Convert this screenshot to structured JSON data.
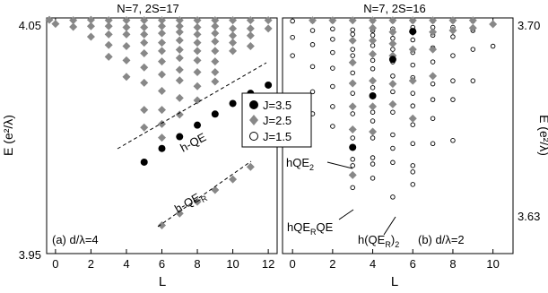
{
  "chart_data": [
    {
      "type": "scatter",
      "title": "N=7, 2S=17",
      "xlabel": "L",
      "ylabel": "E (e²/λ)",
      "xlim": [
        -0.5,
        12.5
      ],
      "ylim": [
        3.95,
        4.05
      ],
      "xticks": [
        0,
        2,
        4,
        6,
        8,
        10,
        12
      ],
      "xtick_labels": [
        "0",
        "2",
        "4",
        "6",
        "8",
        "10",
        "12"
      ],
      "ytick_labels": [
        "4.05",
        "3.95"
      ],
      "panel_label": "(a) d/λ=4",
      "legend": {
        "position": "right",
        "entries": [
          "J=3.5",
          "J=2.5",
          "J=1.5"
        ]
      },
      "series": [
        {
          "name": "J=3.5",
          "marker": "filled-circle",
          "color": "#000000",
          "points": [
            [
              5,
              3.9888
            ],
            [
              6,
              3.9946
            ],
            [
              7,
              3.9996
            ],
            [
              8,
              4.0045
            ],
            [
              9,
              4.0092
            ],
            [
              10,
              4.0137
            ],
            [
              11,
              4.018
            ],
            [
              12,
              4.0215
            ]
          ]
        },
        {
          "name": "J=2.5",
          "marker": "diamond",
          "color": "#888888",
          "points": [
            [
              -1,
              4.0492
            ],
            [
              0,
              4.0475
            ],
            [
              1,
              4.049
            ],
            [
              1,
              4.0462
            ],
            [
              2,
              4.0492
            ],
            [
              2,
              4.0465
            ],
            [
              2,
              4.042
            ],
            [
              3,
              4.049
            ],
            [
              3,
              4.0465
            ],
            [
              3,
              4.043
            ],
            [
              3,
              4.0385
            ],
            [
              3,
              4.0335
            ],
            [
              4,
              4.049
            ],
            [
              4,
              4.046
            ],
            [
              4,
              4.043
            ],
            [
              4,
              4.038
            ],
            [
              4,
              4.032
            ],
            [
              4,
              4.025
            ],
            [
              5,
              4.049
            ],
            [
              5,
              4.046
            ],
            [
              5,
              4.043
            ],
            [
              5,
              4.0395
            ],
            [
              5,
              4.035
            ],
            [
              5,
              4.029
            ],
            [
              5,
              4.0225
            ],
            [
              5,
              4.011
            ],
            [
              5,
              4.0035
            ],
            [
              6,
              4.049
            ],
            [
              6,
              4.0465
            ],
            [
              6,
              4.0435
            ],
            [
              6,
              4.0395
            ],
            [
              6,
              4.036
            ],
            [
              6,
              4.0315
            ],
            [
              6,
              4.026
            ],
            [
              6,
              4.019
            ],
            [
              6,
              4.011
            ],
            [
              6,
              4.005
            ],
            [
              6,
              3.9992
            ],
            [
              7,
              4.049
            ],
            [
              7,
              4.0465
            ],
            [
              7,
              4.044
            ],
            [
              7,
              4.0405
            ],
            [
              7,
              4.0365
            ],
            [
              7,
              4.033
            ],
            [
              7,
              4.028
            ],
            [
              7,
              4.0235
            ],
            [
              7,
              4.016
            ],
            [
              7,
              4.009
            ],
            [
              8,
              4.049
            ],
            [
              8,
              4.046
            ],
            [
              8,
              4.043
            ],
            [
              8,
              4.0395
            ],
            [
              8,
              4.036
            ],
            [
              8,
              4.032
            ],
            [
              8,
              4.027
            ],
            [
              8,
              4.021
            ],
            [
              8,
              4.015
            ],
            [
              9,
              4.049
            ],
            [
              9,
              4.0465
            ],
            [
              9,
              4.0435
            ],
            [
              9,
              4.04
            ],
            [
              9,
              4.036
            ],
            [
              9,
              4.0315
            ],
            [
              9,
              4.027
            ],
            [
              9,
              4.023
            ],
            [
              10,
              4.049
            ],
            [
              10,
              4.0455
            ],
            [
              10,
              4.0425
            ],
            [
              10,
              4.0395
            ],
            [
              10,
              4.036
            ],
            [
              11,
              4.049
            ],
            [
              11,
              4.0455
            ],
            [
              11,
              4.0425
            ],
            [
              11,
              4.038
            ],
            [
              12,
              4.049
            ],
            [
              12,
              4.0455
            ],
            [
              6,
              3.962
            ],
            [
              7,
              3.967
            ],
            [
              8,
              3.972
            ],
            [
              9,
              3.977
            ],
            [
              10,
              3.9815
            ],
            [
              11,
              3.9868
            ]
          ]
        }
      ],
      "annotations": [
        {
          "text": "h-QE",
          "x": 7.8,
          "y": 3.9985
        },
        {
          "text": "h-QE",
          "sub": "R",
          "x": 6.7,
          "y": 3.9673
        }
      ]
    },
    {
      "type": "scatter",
      "title": "N=7, 2S=16",
      "xlabel": "L",
      "ylabel": "E (e²/λ)",
      "xlim": [
        -0.5,
        11
      ],
      "ylim": [
        3.625,
        3.7
      ],
      "xticks": [
        0,
        2,
        4,
        6,
        8,
        10
      ],
      "xtick_labels": [
        "0",
        "2",
        "4",
        "6",
        "8",
        "10"
      ],
      "ytick_labels": [
        "3.70",
        "3.63"
      ],
      "panel_label": "(b) d/λ=2",
      "series": [
        {
          "name": "J=3.5",
          "marker": "filled-circle",
          "color": "#000000",
          "points": [
            [
              6,
              3.6957
            ],
            [
              5,
              3.6868
            ],
            [
              4,
              3.6752
            ],
            [
              3,
              3.6588
            ]
          ]
        },
        {
          "name": "J=2.5",
          "marker": "diamond",
          "color": "#888888",
          "points": [
            [
              1,
              3.6992
            ],
            [
              2,
              3.6992
            ],
            [
              3,
              3.6992
            ],
            [
              3,
              3.6928
            ],
            [
              3,
              3.6858
            ],
            [
              3,
              3.6792
            ],
            [
              3,
              3.6718
            ],
            [
              3,
              3.6645
            ],
            [
              3,
              3.65
            ],
            [
              4,
              3.6992
            ],
            [
              4,
              3.6968
            ],
            [
              4,
              3.6928
            ],
            [
              4,
              3.6885
            ],
            [
              4,
              3.68
            ],
            [
              4,
              3.6718
            ],
            [
              4,
              3.6638
            ],
            [
              5,
              3.6992
            ],
            [
              5,
              3.6955
            ],
            [
              5,
              3.6918
            ],
            [
              5,
              3.688
            ],
            [
              5,
              3.679
            ],
            [
              5,
              3.6725
            ],
            [
              6,
              3.6992
            ],
            [
              6,
              3.6955
            ],
            [
              6,
              3.69
            ],
            [
              6,
              3.68
            ],
            [
              6,
              3.668
            ],
            [
              7,
              3.6992
            ],
            [
              7,
              3.6955
            ],
            [
              7,
              3.69
            ],
            [
              7,
              3.6815
            ],
            [
              8,
              3.6992
            ],
            [
              8,
              3.696
            ],
            [
              9,
              3.6992
            ],
            [
              9,
              3.6968
            ],
            [
              10,
              3.698
            ]
          ]
        },
        {
          "name": "J=1.5",
          "marker": "open-circle",
          "color": "#000000",
          "points": [
            [
              0,
              3.699
            ],
            [
              0,
              3.6938
            ],
            [
              0,
              3.688
            ],
            [
              0,
              3.675
            ],
            [
              1,
              3.699
            ],
            [
              1,
              3.696
            ],
            [
              1,
              3.6915
            ],
            [
              1,
              3.6845
            ],
            [
              1,
              3.6765
            ],
            [
              1,
              3.6695
            ],
            [
              2,
              3.699
            ],
            [
              2,
              3.6965
            ],
            [
              2,
              3.6932
            ],
            [
              2,
              3.689
            ],
            [
              2,
              3.684
            ],
            [
              2,
              3.6782
            ],
            [
              2,
              3.6718
            ],
            [
              2,
              3.6655
            ],
            [
              3,
              3.6962
            ],
            [
              3,
              3.6948
            ],
            [
              3,
              3.69
            ],
            [
              3,
              3.688
            ],
            [
              3,
              3.6825
            ],
            [
              3,
              3.676
            ],
            [
              3,
              3.6695
            ],
            [
              3,
              3.6618
            ],
            [
              3,
              3.655
            ],
            [
              3,
              3.653
            ],
            [
              3,
              3.646
            ],
            [
              4,
              3.699
            ],
            [
              4,
              3.696
            ],
            [
              4,
              3.6945
            ],
            [
              4,
              3.6912
            ],
            [
              4,
              3.6865
            ],
            [
              4,
              3.6838
            ],
            [
              4,
              3.6778
            ],
            [
              4,
              3.67
            ],
            [
              4,
              3.6672
            ],
            [
              4,
              3.6618
            ],
            [
              4,
              3.6555
            ],
            [
              4,
              3.6535
            ],
            [
              4,
              3.649
            ],
            [
              5,
              3.699
            ],
            [
              5,
              3.6965
            ],
            [
              5,
              3.6935
            ],
            [
              5,
              3.69
            ],
            [
              5,
              3.686
            ],
            [
              5,
              3.6815
            ],
            [
              5,
              3.6765
            ],
            [
              5,
              3.67
            ],
            [
              5,
              3.6628
            ],
            [
              5,
              3.6585
            ],
            [
              5,
              3.654
            ],
            [
              5,
              3.643
            ],
            [
              6,
              3.699
            ],
            [
              6,
              3.697
            ],
            [
              6,
              3.693
            ],
            [
              6,
              3.689
            ],
            [
              6,
              3.685
            ],
            [
              6,
              3.681
            ],
            [
              6,
              3.676
            ],
            [
              6,
              3.672
            ],
            [
              6,
              3.666
            ],
            [
              6,
              3.66
            ],
            [
              6,
              3.653
            ],
            [
              6,
              3.651
            ],
            [
              6,
              3.647
            ],
            [
              7,
              3.699
            ],
            [
              7,
              3.697
            ],
            [
              7,
              3.6945
            ],
            [
              7,
              3.6905
            ],
            [
              7,
              3.686
            ],
            [
              7,
              3.679
            ],
            [
              7,
              3.674
            ],
            [
              7,
              3.668
            ],
            [
              7,
              3.66
            ],
            [
              8,
              3.699
            ],
            [
              8,
              3.697
            ],
            [
              8,
              3.694
            ],
            [
              8,
              3.688
            ],
            [
              8,
              3.68
            ],
            [
              8,
              3.674
            ],
            [
              8,
              3.661
            ],
            [
              9,
              3.699
            ],
            [
              9,
              3.696
            ],
            [
              9,
              3.69
            ],
            [
              9,
              3.68
            ],
            [
              10,
              3.691
            ]
          ]
        }
      ],
      "annotations": [
        {
          "text": "hQE",
          "sub": "2",
          "target_L": 3,
          "target_E": 3.6588
        },
        {
          "text": "hQE",
          "sub": "R",
          "text2": "QE",
          "target_L": 3,
          "target_E": 3.65
        },
        {
          "text": "h(QE",
          "sub": "R",
          "text2": ")",
          "sub2": "2",
          "target_L": 5,
          "target_E": 3.643
        }
      ]
    }
  ]
}
